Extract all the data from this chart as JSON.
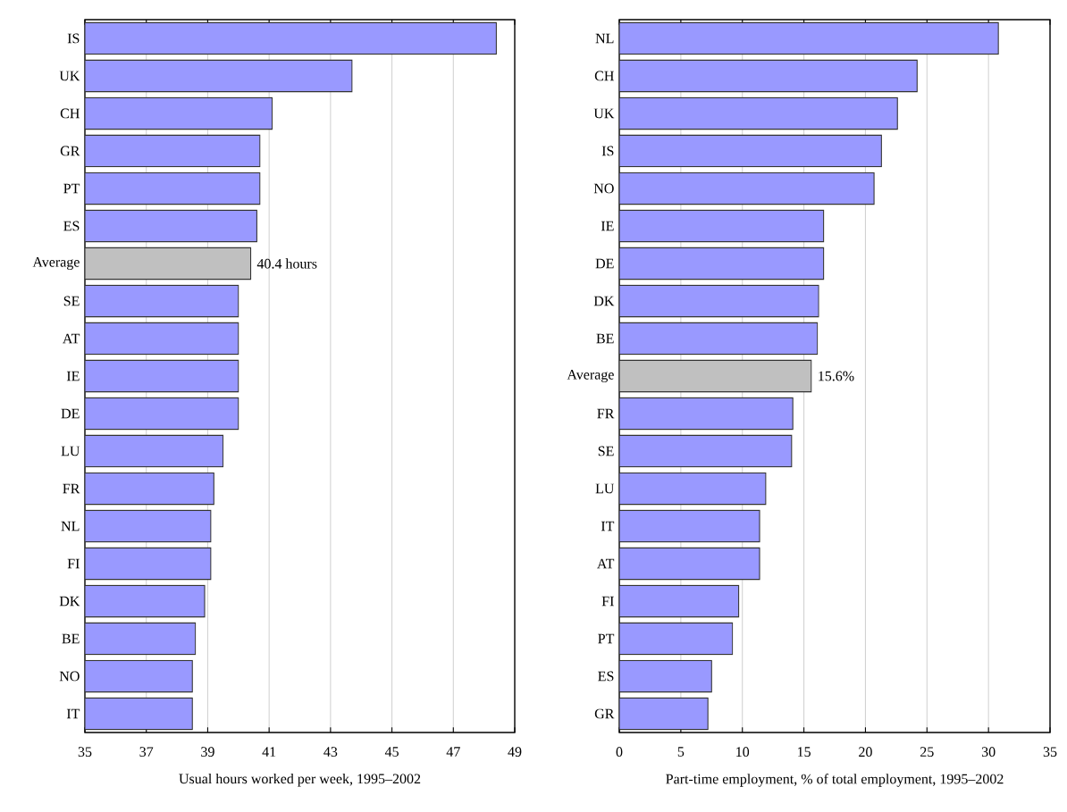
{
  "chart_data": [
    {
      "type": "bar",
      "orientation": "horizontal",
      "xlabel": "Usual hours worked per week, 1995–2002",
      "categories": [
        "IS",
        "UK",
        "CH",
        "GR",
        "PT",
        "ES",
        "Average",
        "SE",
        "AT",
        "IE",
        "DE",
        "LU",
        "FR",
        "NL",
        "FI",
        "DK",
        "BE",
        "NO",
        "IT"
      ],
      "values": [
        48.4,
        43.7,
        41.1,
        40.7,
        40.7,
        40.6,
        40.4,
        40.0,
        40.0,
        40.0,
        40.0,
        39.5,
        39.2,
        39.1,
        39.1,
        38.9,
        38.6,
        38.5,
        38.5
      ],
      "colors": [
        "#9999ff",
        "#9999ff",
        "#9999ff",
        "#9999ff",
        "#9999ff",
        "#9999ff",
        "#c0c0c0",
        "#9999ff",
        "#9999ff",
        "#9999ff",
        "#9999ff",
        "#9999ff",
        "#9999ff",
        "#9999ff",
        "#9999ff",
        "#9999ff",
        "#9999ff",
        "#9999ff",
        "#9999ff"
      ],
      "value_labels": [
        null,
        null,
        null,
        null,
        null,
        null,
        "40.4 hours",
        null,
        null,
        null,
        null,
        null,
        null,
        null,
        null,
        null,
        null,
        null,
        null
      ],
      "xlim": [
        35,
        49
      ],
      "xticks": [
        35,
        37,
        39,
        41,
        43,
        45,
        47,
        49
      ],
      "grid": "x"
    },
    {
      "type": "bar",
      "orientation": "horizontal",
      "xlabel": "Part-time employment, % of total employment, 1995–2002",
      "categories": [
        "NL",
        "CH",
        "UK",
        "IS",
        "NO",
        "IE",
        "DE",
        "DK",
        "BE",
        "Average",
        "FR",
        "SE",
        "LU",
        "IT",
        "AT",
        "FI",
        "PT",
        "ES",
        "GR"
      ],
      "values": [
        30.8,
        24.2,
        22.6,
        21.3,
        20.7,
        16.6,
        16.6,
        16.2,
        16.1,
        15.6,
        14.1,
        14.0,
        11.9,
        11.4,
        11.4,
        9.7,
        9.2,
        7.5,
        7.2
      ],
      "colors": [
        "#9999ff",
        "#9999ff",
        "#9999ff",
        "#9999ff",
        "#9999ff",
        "#9999ff",
        "#9999ff",
        "#9999ff",
        "#9999ff",
        "#c0c0c0",
        "#9999ff",
        "#9999ff",
        "#9999ff",
        "#9999ff",
        "#9999ff",
        "#9999ff",
        "#9999ff",
        "#9999ff",
        "#9999ff"
      ],
      "value_labels": [
        null,
        null,
        null,
        null,
        null,
        null,
        null,
        null,
        null,
        "15.6%",
        null,
        null,
        null,
        null,
        null,
        null,
        null,
        null,
        null
      ],
      "xlim": [
        0,
        35
      ],
      "xticks": [
        0,
        5,
        10,
        15,
        20,
        25,
        30,
        35
      ],
      "grid": "x"
    }
  ]
}
